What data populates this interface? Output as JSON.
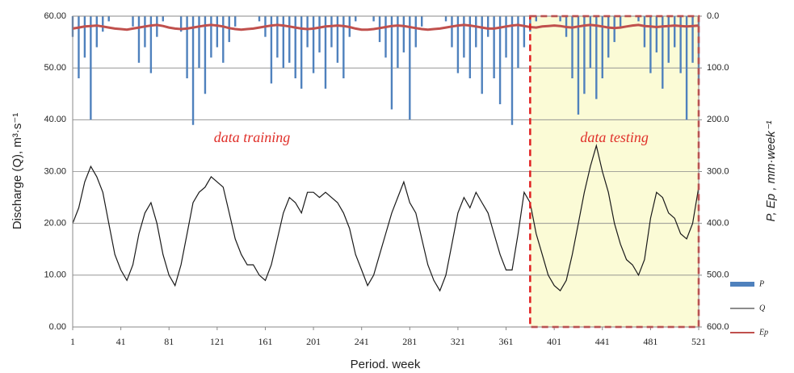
{
  "chart_data": {
    "type": "combo",
    "x": [
      1,
      6,
      11,
      16,
      21,
      26,
      31,
      36,
      41,
      46,
      51,
      56,
      61,
      66,
      71,
      76,
      81,
      86,
      91,
      96,
      101,
      106,
      111,
      116,
      121,
      126,
      131,
      136,
      141,
      146,
      151,
      156,
      161,
      166,
      171,
      176,
      181,
      186,
      191,
      196,
      201,
      206,
      211,
      216,
      221,
      226,
      231,
      236,
      241,
      246,
      251,
      256,
      261,
      266,
      271,
      276,
      281,
      286,
      291,
      296,
      301,
      306,
      311,
      316,
      321,
      326,
      331,
      336,
      341,
      346,
      351,
      356,
      361,
      366,
      371,
      376,
      381,
      386,
      391,
      396,
      401,
      406,
      411,
      416,
      421,
      426,
      431,
      436,
      441,
      446,
      451,
      456,
      461,
      466,
      471,
      476,
      481,
      486,
      491,
      496,
      501,
      506,
      511,
      516,
      521
    ],
    "series": [
      {
        "name": "P",
        "type": "bar",
        "axis": "y2",
        "color": "#4f81bd",
        "values": [
          40,
          120,
          80,
          200,
          60,
          30,
          10,
          0,
          0,
          0,
          20,
          90,
          60,
          110,
          40,
          10,
          0,
          0,
          30,
          120,
          210,
          100,
          150,
          80,
          60,
          90,
          50,
          20,
          0,
          0,
          0,
          10,
          40,
          130,
          80,
          100,
          90,
          120,
          140,
          60,
          110,
          70,
          140,
          60,
          90,
          120,
          40,
          10,
          0,
          0,
          10,
          50,
          80,
          180,
          100,
          70,
          200,
          60,
          20,
          0,
          0,
          0,
          10,
          60,
          110,
          80,
          120,
          60,
          150,
          40,
          120,
          170,
          80,
          210,
          100,
          60,
          30,
          10,
          0,
          0,
          0,
          10,
          40,
          120,
          190,
          150,
          100,
          160,
          120,
          80,
          50,
          20,
          0,
          0,
          10,
          60,
          110,
          70,
          140,
          90,
          60,
          110,
          200,
          90,
          130
        ]
      },
      {
        "name": "Q",
        "type": "line",
        "color": "#1a1a1a",
        "values": [
          20,
          23,
          28,
          31,
          29,
          26,
          20,
          14,
          11,
          9,
          12,
          18,
          22,
          24,
          20,
          14,
          10,
          8,
          12,
          18,
          24,
          26,
          27,
          29,
          28,
          27,
          22,
          17,
          14,
          12,
          12,
          10,
          9,
          12,
          17,
          22,
          25,
          24,
          22,
          26,
          26,
          25,
          26,
          25,
          24,
          22,
          19,
          14,
          11,
          8,
          10,
          14,
          18,
          22,
          25,
          28,
          24,
          22,
          17,
          12,
          9,
          7,
          10,
          16,
          22,
          25,
          23,
          26,
          24,
          22,
          18,
          14,
          11,
          11,
          18,
          26,
          24,
          18,
          14,
          10,
          8,
          7,
          9,
          14,
          20,
          26,
          31,
          35,
          30,
          26,
          20,
          16,
          13,
          12,
          10,
          13,
          21,
          26,
          25,
          22,
          21,
          18,
          17,
          20,
          27
        ]
      },
      {
        "name": "Ep",
        "type": "line",
        "axis": "y2",
        "color": "#c0504d",
        "values": [
          24,
          22,
          20,
          19,
          18,
          20,
          22,
          24,
          25,
          26,
          24,
          22,
          20,
          18,
          17,
          19,
          22,
          24,
          25,
          24,
          22,
          20,
          18,
          17,
          18,
          20,
          23,
          25,
          26,
          25,
          24,
          22,
          20,
          18,
          17,
          18,
          20,
          22,
          24,
          25,
          24,
          22,
          20,
          19,
          18,
          19,
          21,
          24,
          26,
          26,
          25,
          23,
          21,
          19,
          18,
          19,
          21,
          23,
          25,
          26,
          25,
          24,
          22,
          20,
          18,
          17,
          18,
          20,
          22,
          24,
          24,
          22,
          20,
          18,
          17,
          19,
          21,
          22,
          20,
          19,
          18,
          19,
          21,
          22,
          20,
          18,
          17,
          18,
          20,
          22,
          23,
          22,
          20,
          18,
          17,
          19,
          20,
          21,
          20,
          19,
          18,
          19,
          20,
          19,
          18
        ]
      }
    ],
    "xlim": [
      1,
      521
    ],
    "xticks": [
      1,
      41,
      81,
      121,
      161,
      201,
      241,
      281,
      321,
      361,
      401,
      441,
      481,
      521
    ],
    "ylim": [
      0,
      60
    ],
    "yticks": [
      {
        "value": 0,
        "label": "0.00"
      },
      {
        "value": 10,
        "label": "10.00"
      },
      {
        "value": 20,
        "label": "20.00"
      },
      {
        "value": 30,
        "label": "30.00"
      },
      {
        "value": 40,
        "label": "40.00"
      },
      {
        "value": 50,
        "label": "50.00"
      },
      {
        "value": 60,
        "label": "60.00"
      }
    ],
    "y2lim": [
      600,
      0
    ],
    "y2ticks": [
      {
        "value": 0,
        "label": "0.0"
      },
      {
        "value": 100,
        "label": "100.0"
      },
      {
        "value": 200,
        "label": "200.0"
      },
      {
        "value": 300,
        "label": "300.0"
      },
      {
        "value": 400,
        "label": "400.0"
      },
      {
        "value": 500,
        "label": "500.0"
      },
      {
        "value": 600,
        "label": "600.0"
      }
    ],
    "xlabel": "Period. week",
    "ylabel": "Discharge  (Q), m³·s⁻¹",
    "y2label": "P, Ep , mm·week⁻¹",
    "test_period": [
      381,
      521
    ],
    "annotations": [
      "data training",
      "data testing"
    ],
    "grid": true,
    "legend": "right"
  }
}
